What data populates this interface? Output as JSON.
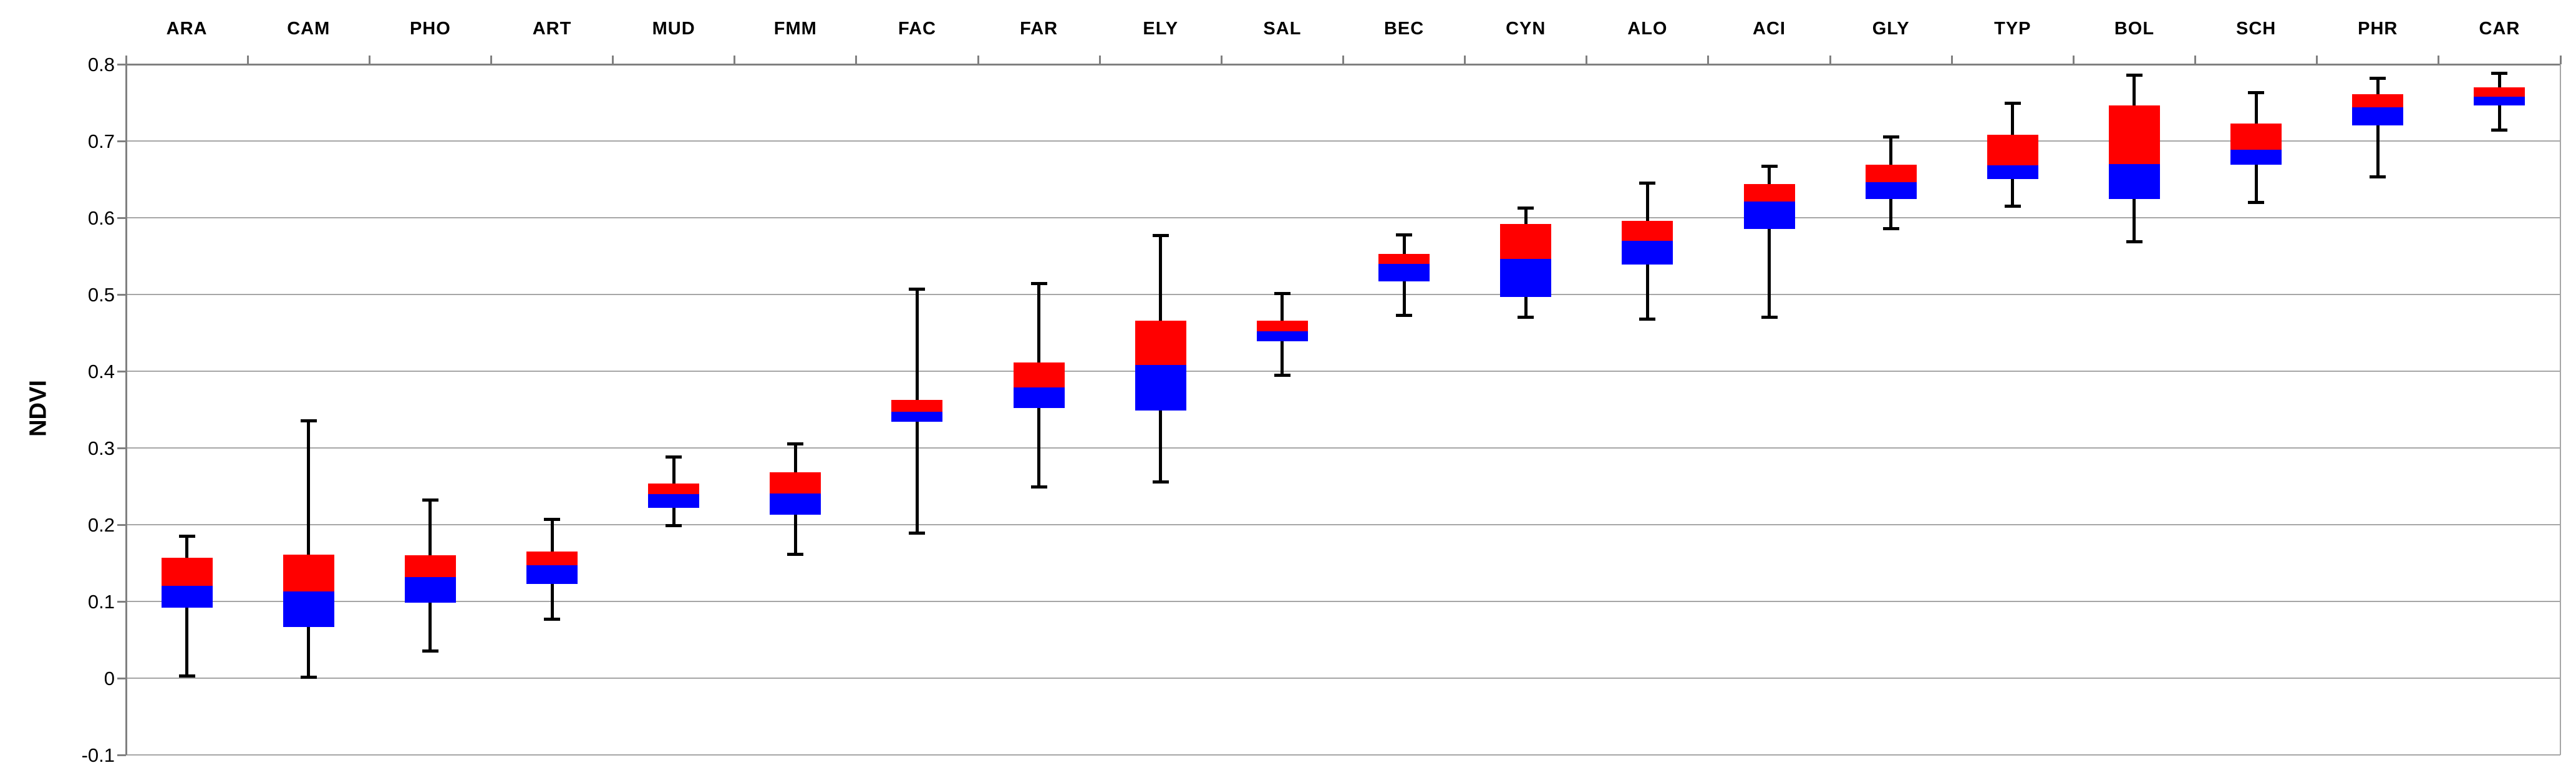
{
  "chart_data": {
    "type": "boxplot",
    "title": "",
    "ylabel": "NDVI",
    "xlabel": "",
    "ylim": [
      -0.1,
      0.8
    ],
    "ytick_step": 0.1,
    "yticks": [
      "0.8",
      "0.7",
      "0.6",
      "0.5",
      "0.4",
      "0.3",
      "0.2",
      "0.1",
      "0",
      "-0.1"
    ],
    "grid": true,
    "legend": "none",
    "categories": [
      "ARA",
      "CAM",
      "PHO",
      "ART",
      "MUD",
      "FMM",
      "FAC",
      "FAR",
      "ELY",
      "SAL",
      "BEC",
      "CYN",
      "ALO",
      "ACI",
      "GLY",
      "TYP",
      "BOL",
      "SCH",
      "PHR",
      "CAR"
    ],
    "series": [
      {
        "name": "upper-box-median-to-q3",
        "color": "#ff0000"
      },
      {
        "name": "lower-box-q1-to-median",
        "color": "#0000ff"
      }
    ],
    "boxes": [
      {
        "label": "ARA",
        "min": 0.003,
        "q1": 0.092,
        "median": 0.12,
        "q3": 0.157,
        "max": 0.185
      },
      {
        "label": "CAM",
        "min": 0.001,
        "q1": 0.067,
        "median": 0.113,
        "q3": 0.161,
        "max": 0.335
      },
      {
        "label": "PHO",
        "min": 0.035,
        "q1": 0.098,
        "median": 0.132,
        "q3": 0.16,
        "max": 0.232
      },
      {
        "label": "ART",
        "min": 0.077,
        "q1": 0.123,
        "median": 0.147,
        "q3": 0.165,
        "max": 0.207
      },
      {
        "label": "MUD",
        "min": 0.199,
        "q1": 0.222,
        "median": 0.24,
        "q3": 0.254,
        "max": 0.288
      },
      {
        "label": "FMM",
        "min": 0.161,
        "q1": 0.213,
        "median": 0.241,
        "q3": 0.268,
        "max": 0.305
      },
      {
        "label": "FAC",
        "min": 0.189,
        "q1": 0.334,
        "median": 0.347,
        "q3": 0.363,
        "max": 0.507
      },
      {
        "label": "FAR",
        "min": 0.249,
        "q1": 0.352,
        "median": 0.379,
        "q3": 0.411,
        "max": 0.514
      },
      {
        "label": "ELY",
        "min": 0.256,
        "q1": 0.349,
        "median": 0.408,
        "q3": 0.466,
        "max": 0.577
      },
      {
        "label": "SAL",
        "min": 0.395,
        "q1": 0.439,
        "median": 0.452,
        "q3": 0.466,
        "max": 0.501
      },
      {
        "label": "BEC",
        "min": 0.473,
        "q1": 0.517,
        "median": 0.54,
        "q3": 0.553,
        "max": 0.578
      },
      {
        "label": "CYN",
        "min": 0.47,
        "q1": 0.497,
        "median": 0.546,
        "q3": 0.592,
        "max": 0.613
      },
      {
        "label": "ALO",
        "min": 0.468,
        "q1": 0.539,
        "median": 0.57,
        "q3": 0.596,
        "max": 0.645
      },
      {
        "label": "ACI",
        "min": 0.47,
        "q1": 0.585,
        "median": 0.621,
        "q3": 0.644,
        "max": 0.667
      },
      {
        "label": "GLY",
        "min": 0.586,
        "q1": 0.624,
        "median": 0.646,
        "q3": 0.669,
        "max": 0.705
      },
      {
        "label": "TYP",
        "min": 0.615,
        "q1": 0.65,
        "median": 0.668,
        "q3": 0.708,
        "max": 0.749
      },
      {
        "label": "BOL",
        "min": 0.569,
        "q1": 0.624,
        "median": 0.67,
        "q3": 0.746,
        "max": 0.786
      },
      {
        "label": "SCH",
        "min": 0.62,
        "q1": 0.669,
        "median": 0.689,
        "q3": 0.723,
        "max": 0.763
      },
      {
        "label": "PHR",
        "min": 0.653,
        "q1": 0.72,
        "median": 0.744,
        "q3": 0.761,
        "max": 0.782
      },
      {
        "label": "CAR",
        "min": 0.714,
        "q1": 0.746,
        "median": 0.758,
        "q3": 0.77,
        "max": 0.788
      }
    ]
  },
  "styles": {
    "background": "#ffffff",
    "gridline_color": "#a6a6a6",
    "axis_color": "#808080",
    "whisker_color": "#000000",
    "upper_box_color": "#ff0000",
    "lower_box_color": "#0000ff",
    "text_color": "#000000"
  }
}
